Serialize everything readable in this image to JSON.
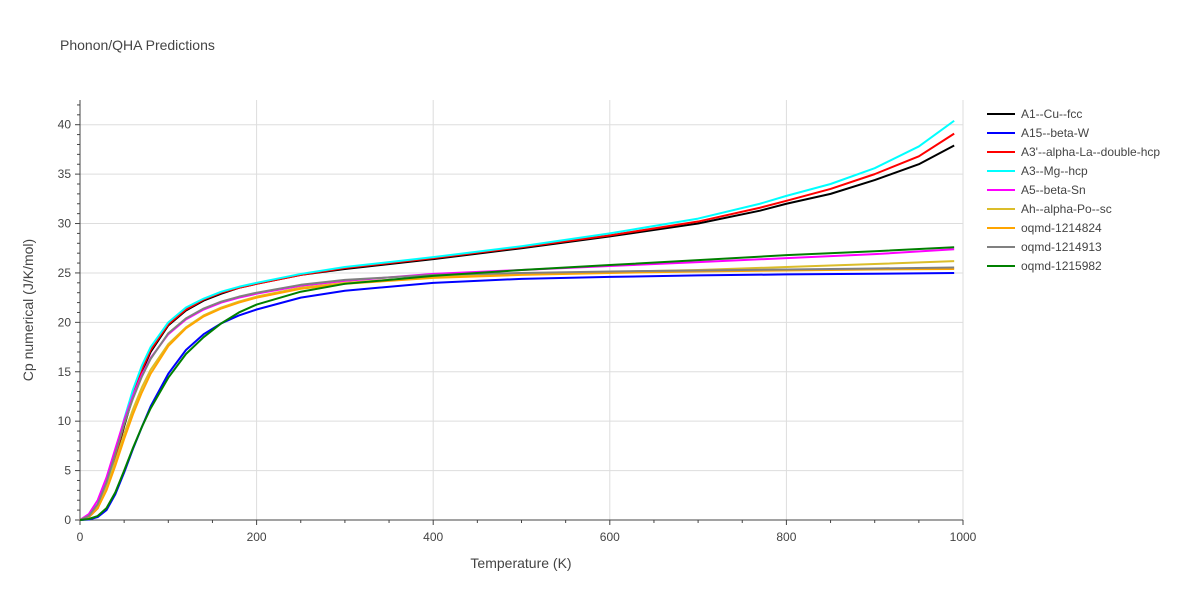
{
  "chart_data": {
    "type": "line",
    "title": "Phonon/QHA Predictions",
    "xlabel": "Temperature (K)",
    "ylabel": "Cp numerical (J/K/mol)",
    "xlim": [
      0,
      1000
    ],
    "ylim": [
      0,
      42.5
    ],
    "x_ticks": [
      0,
      200,
      400,
      600,
      800,
      1000
    ],
    "y_ticks": [
      0,
      5,
      10,
      15,
      20,
      25,
      30,
      35,
      40
    ],
    "grid": true,
    "legend_position": "right",
    "series": [
      {
        "name": "A1--Cu--fcc",
        "color": "#000000",
        "x": [
          0,
          10,
          20,
          30,
          40,
          50,
          60,
          70,
          80,
          100,
          120,
          140,
          160,
          180,
          200,
          250,
          300,
          400,
          500,
          600,
          700,
          770,
          800,
          850,
          900,
          950,
          990
        ],
        "y": [
          0,
          0.3,
          1.2,
          3.2,
          6.2,
          9.5,
          12.5,
          15.0,
          17.0,
          19.7,
          21.2,
          22.2,
          22.9,
          23.5,
          23.9,
          24.8,
          25.4,
          26.4,
          27.5,
          28.7,
          30.0,
          31.3,
          32.0,
          33.0,
          34.4,
          36.0,
          37.9
        ]
      },
      {
        "name": "A15--beta-W",
        "color": "#0000ff",
        "x": [
          0,
          10,
          20,
          30,
          40,
          50,
          60,
          70,
          80,
          100,
          120,
          140,
          160,
          180,
          200,
          250,
          300,
          400,
          500,
          600,
          700,
          800,
          900,
          990
        ],
        "y": [
          0,
          0.05,
          0.3,
          1.0,
          2.6,
          4.8,
          7.2,
          9.4,
          11.5,
          14.8,
          17.2,
          18.8,
          19.9,
          20.7,
          21.3,
          22.5,
          23.2,
          24.0,
          24.4,
          24.6,
          24.75,
          24.85,
          24.92,
          25.0
        ]
      },
      {
        "name": "A3'--alpha-La--double-hcp",
        "color": "#ff0000",
        "x": [
          0,
          10,
          20,
          30,
          40,
          50,
          60,
          70,
          80,
          100,
          120,
          140,
          160,
          180,
          200,
          250,
          300,
          400,
          500,
          600,
          700,
          770,
          800,
          850,
          900,
          950,
          990
        ],
        "y": [
          0,
          0.3,
          1.2,
          3.3,
          6.4,
          9.7,
          12.7,
          15.2,
          17.2,
          19.8,
          21.3,
          22.3,
          23.0,
          23.5,
          23.9,
          24.8,
          25.5,
          26.5,
          27.6,
          28.8,
          30.2,
          31.6,
          32.3,
          33.5,
          35.0,
          36.8,
          39.1
        ]
      },
      {
        "name": "A3--Mg--hcp",
        "color": "#00ffff",
        "x": [
          0,
          10,
          20,
          30,
          40,
          50,
          60,
          70,
          80,
          100,
          120,
          140,
          160,
          180,
          200,
          250,
          300,
          400,
          500,
          600,
          700,
          770,
          800,
          850,
          900,
          950,
          990
        ],
        "y": [
          0,
          0.3,
          1.3,
          3.5,
          6.8,
          10.2,
          13.2,
          15.6,
          17.5,
          20.0,
          21.5,
          22.4,
          23.1,
          23.6,
          24.0,
          24.9,
          25.6,
          26.6,
          27.7,
          29.0,
          30.5,
          32.0,
          32.8,
          34.0,
          35.6,
          37.8,
          40.4
        ]
      },
      {
        "name": "A5--beta-Sn",
        "color": "#ff00ff",
        "x": [
          0,
          10,
          20,
          30,
          40,
          50,
          60,
          70,
          80,
          100,
          120,
          140,
          160,
          180,
          200,
          250,
          300,
          400,
          500,
          600,
          700,
          800,
          900,
          990
        ],
        "y": [
          0,
          0.6,
          2.0,
          4.3,
          7.2,
          10.1,
          12.6,
          14.7,
          16.4,
          18.8,
          20.3,
          21.3,
          22.0,
          22.5,
          22.9,
          23.7,
          24.2,
          24.9,
          25.3,
          25.7,
          26.1,
          26.5,
          26.9,
          27.4
        ]
      },
      {
        "name": "Ah--alpha-Po--sc",
        "color": "#dbbd2a",
        "x": [
          0,
          10,
          20,
          30,
          40,
          50,
          60,
          70,
          80,
          100,
          120,
          140,
          160,
          180,
          200,
          250,
          300,
          400,
          500,
          600,
          700,
          800,
          900,
          990
        ],
        "y": [
          0,
          0.4,
          1.3,
          3.3,
          5.9,
          8.7,
          11.2,
          13.4,
          15.2,
          17.8,
          19.5,
          20.7,
          21.5,
          22.1,
          22.6,
          23.5,
          24.0,
          24.6,
          24.9,
          25.1,
          25.3,
          25.6,
          25.9,
          26.2
        ]
      },
      {
        "name": "oqmd-1214824",
        "color": "#ffa500",
        "x": [
          0,
          10,
          20,
          30,
          40,
          50,
          60,
          70,
          80,
          100,
          120,
          140,
          160,
          180,
          200,
          250,
          300,
          400,
          500,
          600,
          700,
          800,
          900,
          990
        ],
        "y": [
          0,
          0.3,
          1.2,
          3.0,
          5.5,
          8.2,
          10.7,
          12.9,
          14.8,
          17.6,
          19.4,
          20.6,
          21.4,
          22.0,
          22.5,
          23.4,
          23.9,
          24.5,
          24.8,
          25.0,
          25.15,
          25.25,
          25.35,
          25.4
        ]
      },
      {
        "name": "oqmd-1214913",
        "color": "#808080",
        "x": [
          0,
          10,
          20,
          30,
          40,
          50,
          60,
          70,
          80,
          100,
          120,
          140,
          160,
          180,
          200,
          250,
          300,
          400,
          500,
          600,
          700,
          800,
          900,
          990
        ],
        "y": [
          0,
          0.4,
          1.6,
          3.8,
          6.7,
          9.7,
          12.3,
          14.5,
          16.3,
          18.9,
          20.4,
          21.4,
          22.1,
          22.6,
          23.0,
          23.8,
          24.3,
          24.8,
          25.0,
          25.15,
          25.25,
          25.35,
          25.45,
          25.55
        ]
      },
      {
        "name": "oqmd-1215982",
        "color": "#008000",
        "x": [
          0,
          10,
          20,
          30,
          40,
          50,
          60,
          70,
          80,
          100,
          120,
          140,
          160,
          180,
          200,
          250,
          300,
          400,
          500,
          600,
          700,
          800,
          900,
          990
        ],
        "y": [
          0,
          0.1,
          0.4,
          1.2,
          2.8,
          5.0,
          7.3,
          9.4,
          11.3,
          14.4,
          16.8,
          18.5,
          19.9,
          21.0,
          21.8,
          23.1,
          23.9,
          24.7,
          25.3,
          25.8,
          26.3,
          26.8,
          27.2,
          27.6
        ]
      }
    ]
  }
}
